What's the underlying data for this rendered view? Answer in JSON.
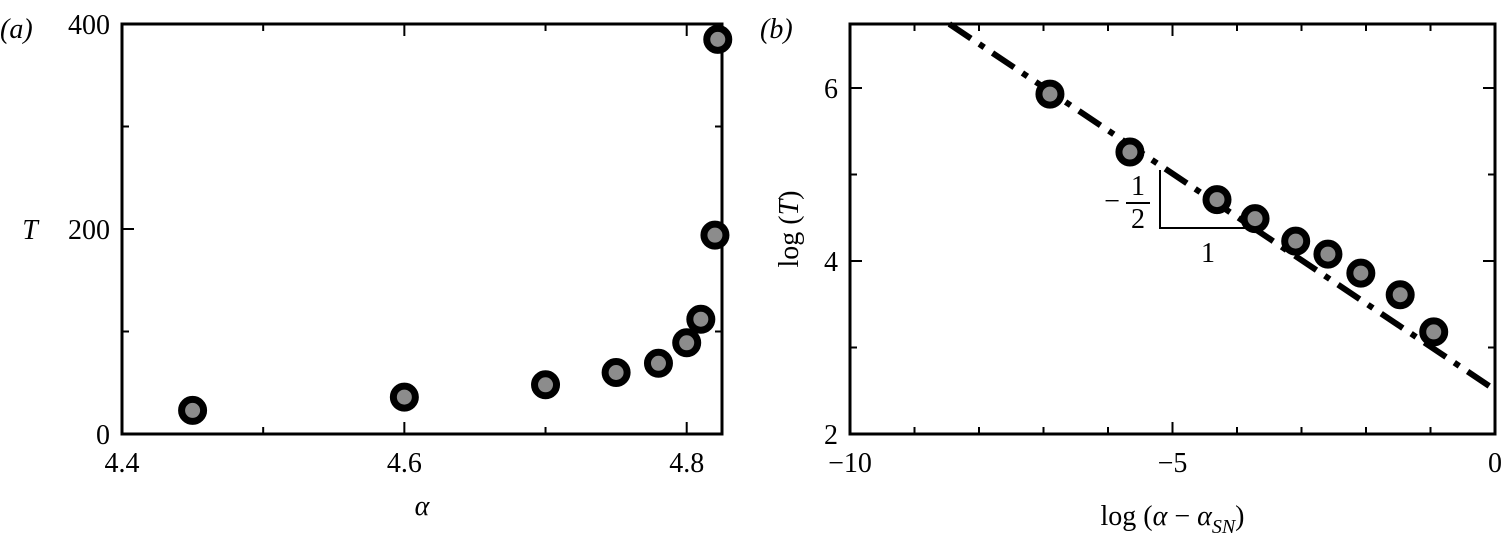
{
  "chart_data": [
    {
      "type": "scatter",
      "panel_label": "(a)",
      "xlabel": "α",
      "ylabel": "T",
      "xlim": [
        4.4,
        4.825
      ],
      "ylim": [
        0,
        400
      ],
      "xticks": [
        4.4,
        4.6,
        4.8
      ],
      "yticks": [
        0,
        200,
        400
      ],
      "xminorticks": [
        4.5,
        4.7
      ],
      "yminorticks": [
        100,
        300
      ],
      "series": [
        {
          "mode": "markers",
          "color": "#8c8c8c",
          "x": [
            4.45,
            4.6,
            4.7,
            4.75,
            4.78,
            4.8,
            4.81,
            4.82,
            4.822
          ],
          "values": [
            23,
            36,
            48,
            60,
            69,
            89,
            112,
            194,
            385
          ]
        }
      ]
    },
    {
      "type": "scatter",
      "panel_label": "(b)",
      "xlabel": [
        "log (",
        "α",
        " − ",
        "α",
        "SN",
        ")"
      ],
      "ylabel": [
        "log (",
        "T",
        ")"
      ],
      "xlim": [
        -10,
        0
      ],
      "ylim": [
        2,
        6.74
      ],
      "xticks": [
        {
          "value": -10,
          "label": "−10"
        },
        {
          "value": -5,
          "label": "−5"
        },
        0
      ],
      "yticks": [
        2,
        4,
        6
      ],
      "xminorticks": [
        -9,
        -8,
        -7,
        -6,
        -4,
        -3,
        -2,
        -1
      ],
      "yminorticks": [
        3,
        5
      ],
      "series": [
        {
          "mode": "markers",
          "color": "#8c8c8c",
          "x": [
            -6.9,
            -5.66,
            -4.31,
            -3.72,
            -3.09,
            -2.59,
            -2.08,
            -1.47,
            -0.95
          ],
          "values": [
            5.93,
            5.26,
            4.71,
            4.49,
            4.23,
            4.08,
            3.86,
            3.61,
            3.18
          ]
        },
        {
          "mode": "line",
          "color": "#000000",
          "style": "dashdot",
          "x": [
            -8.46,
            0
          ],
          "values": [
            6.74,
            2.51
          ]
        }
      ],
      "slope_annotation": {
        "sign": "−",
        "numerator": "1",
        "denominator": "2",
        "run": "1"
      }
    }
  ]
}
